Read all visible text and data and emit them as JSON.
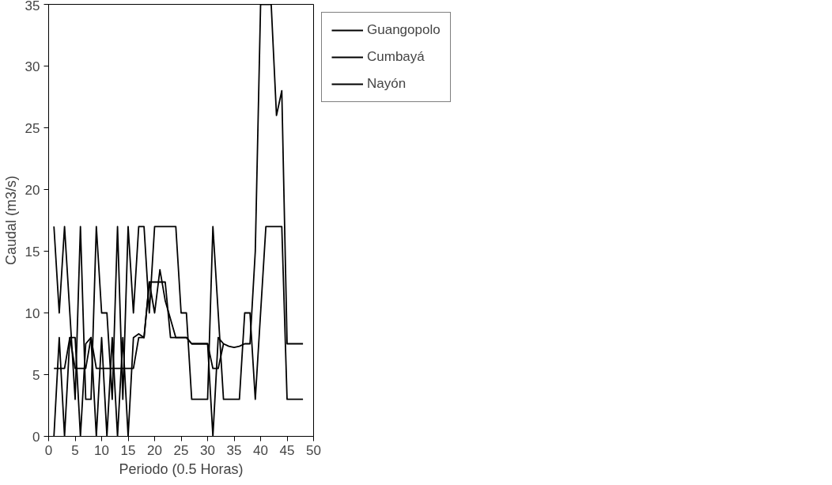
{
  "chart_data": {
    "type": "line",
    "xlabel": "Periodo (0.5 Horas)",
    "ylabel": "Caudal (m3/s)",
    "x": [
      1,
      2,
      3,
      4,
      5,
      6,
      7,
      8,
      9,
      10,
      11,
      12,
      13,
      14,
      15,
      16,
      17,
      18,
      19,
      20,
      21,
      22,
      23,
      24,
      25,
      26,
      27,
      28,
      29,
      30,
      31,
      32,
      33,
      34,
      35,
      36,
      37,
      38,
      39,
      40,
      41,
      42,
      43,
      44,
      45,
      46,
      47,
      48
    ],
    "series": [
      {
        "name": "Guangopolo",
        "color": "#000000",
        "values": [
          17,
          10,
          17,
          10,
          3,
          17,
          3,
          3,
          17,
          10,
          10,
          3,
          17,
          3,
          17,
          10,
          17,
          17,
          10,
          17,
          17,
          17,
          17,
          17,
          10,
          10,
          3,
          3,
          3,
          3,
          17,
          10,
          3,
          3,
          3,
          3,
          10,
          10,
          3,
          10,
          17,
          17,
          17,
          17,
          3,
          3,
          3,
          3
        ]
      },
      {
        "name": "Cumbayá",
        "color": "#000000",
        "values": [
          0,
          8,
          0,
          8,
          8,
          0,
          7.5,
          8,
          0,
          8,
          0,
          8,
          0,
          8,
          0,
          8,
          8.3,
          8,
          12.5,
          10,
          13.5,
          11,
          9.5,
          8,
          8,
          8,
          7.5,
          7.5,
          7.5,
          7.5,
          0,
          8,
          7.5,
          7.3,
          7.2,
          7.3,
          7.5,
          7.5,
          15,
          35,
          35,
          35,
          26,
          28,
          7.5,
          7.5,
          7.5,
          7.5
        ]
      },
      {
        "name": "Nayón",
        "color": "#000000",
        "values": [
          5.5,
          5.5,
          5.5,
          8,
          5.5,
          5.5,
          5.5,
          8,
          5.5,
          5.5,
          5.5,
          5.5,
          5.5,
          5.5,
          5.5,
          5.5,
          8,
          8,
          12.5,
          12.5,
          12.5,
          12.5,
          8,
          8,
          8,
          8,
          7.5,
          7.5,
          7.5,
          7.5,
          5.5,
          5.5,
          7.5,
          null,
          null,
          null,
          null,
          null,
          null,
          null,
          null,
          null,
          null,
          null,
          null,
          null,
          null,
          null
        ]
      }
    ],
    "xlim": [
      0,
      50
    ],
    "xticks": [
      0,
      5,
      10,
      15,
      20,
      25,
      30,
      35,
      40,
      45,
      50
    ],
    "ylim": [
      0,
      35
    ],
    "yticks": [
      0,
      5,
      10,
      15,
      20,
      25,
      30,
      35
    ],
    "grid": false,
    "legend": "top right",
    "marker": "none",
    "line_style": "solid"
  }
}
